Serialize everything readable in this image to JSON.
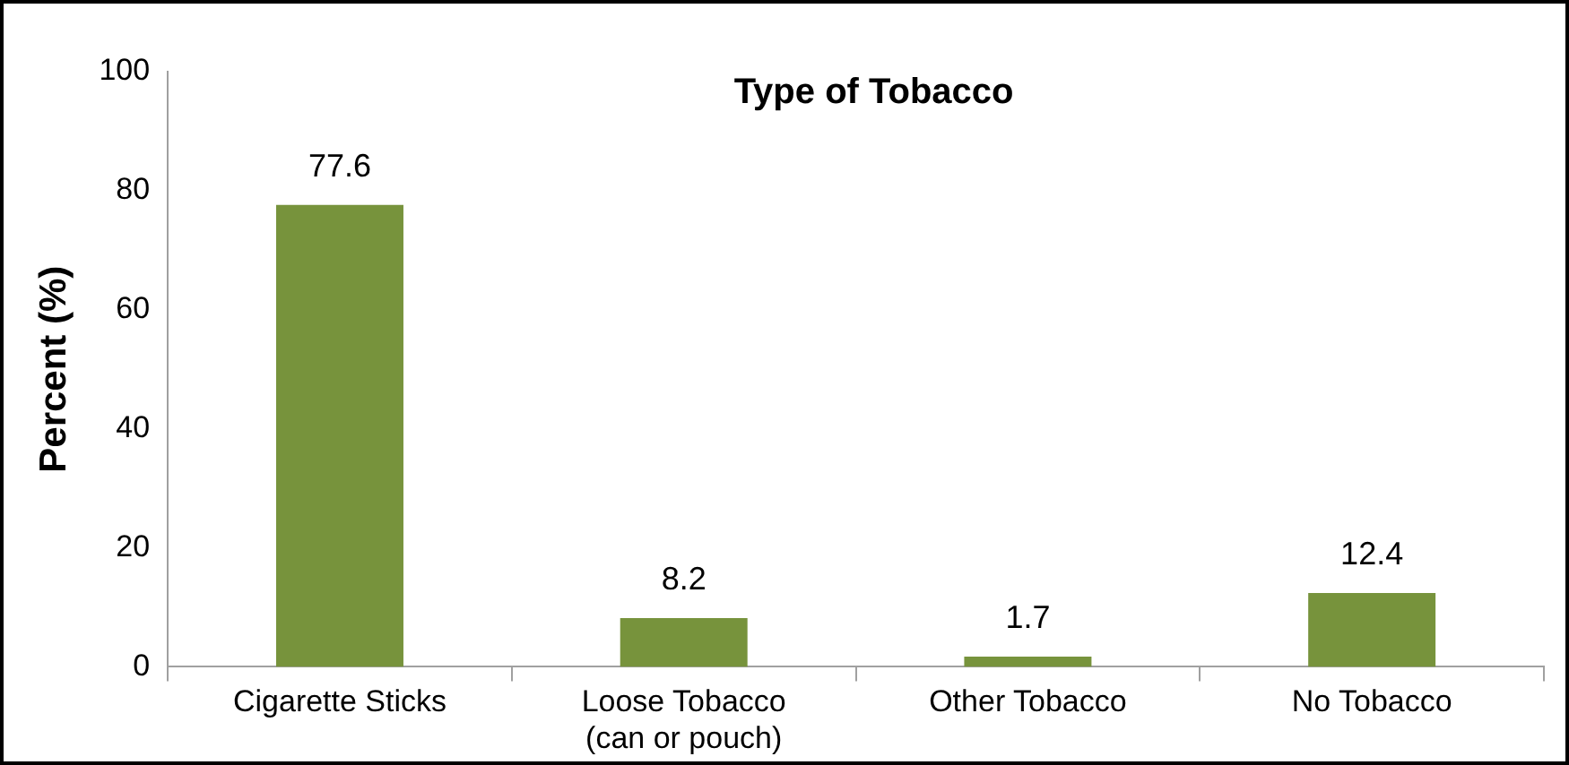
{
  "chart_data": {
    "type": "bar",
    "title": "Type of Tobacco",
    "ylabel": "Percent (%)",
    "categories": [
      "Cigarette Sticks",
      "Loose Tobacco\n(can or pouch)",
      "Other Tobacco",
      "No Tobacco"
    ],
    "values": [
      77.6,
      8.2,
      1.7,
      12.4
    ],
    "color": "#77933c",
    "ylim": [
      0,
      100
    ],
    "yticks": [
      0,
      20,
      40,
      60,
      80,
      100
    ],
    "grid": false,
    "legend": false,
    "data_labels": true
  }
}
